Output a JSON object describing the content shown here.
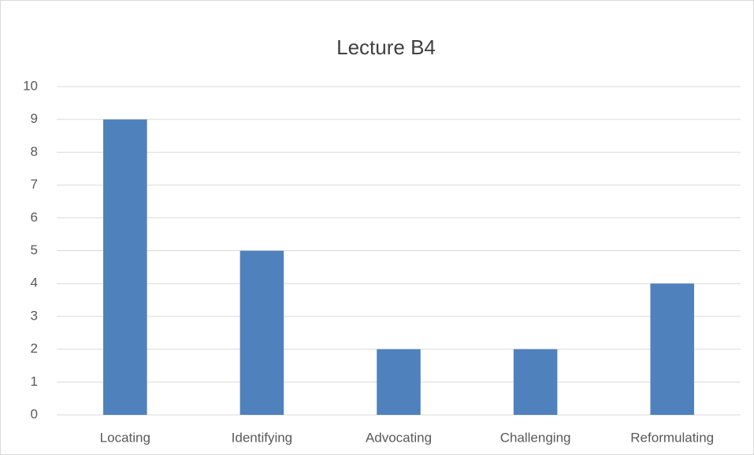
{
  "chart_data": {
    "type": "bar",
    "title": "Lecture B4",
    "categories": [
      "Locating",
      "Identifying",
      "Advocating",
      "Challenging",
      "Reformulating"
    ],
    "values": [
      9,
      5,
      2,
      2,
      4
    ],
    "color": "#4f81bd",
    "ylim": [
      0,
      10
    ],
    "yticks": [
      0,
      1,
      2,
      3,
      4,
      5,
      6,
      7,
      8,
      9,
      10
    ],
    "grid": true
  }
}
